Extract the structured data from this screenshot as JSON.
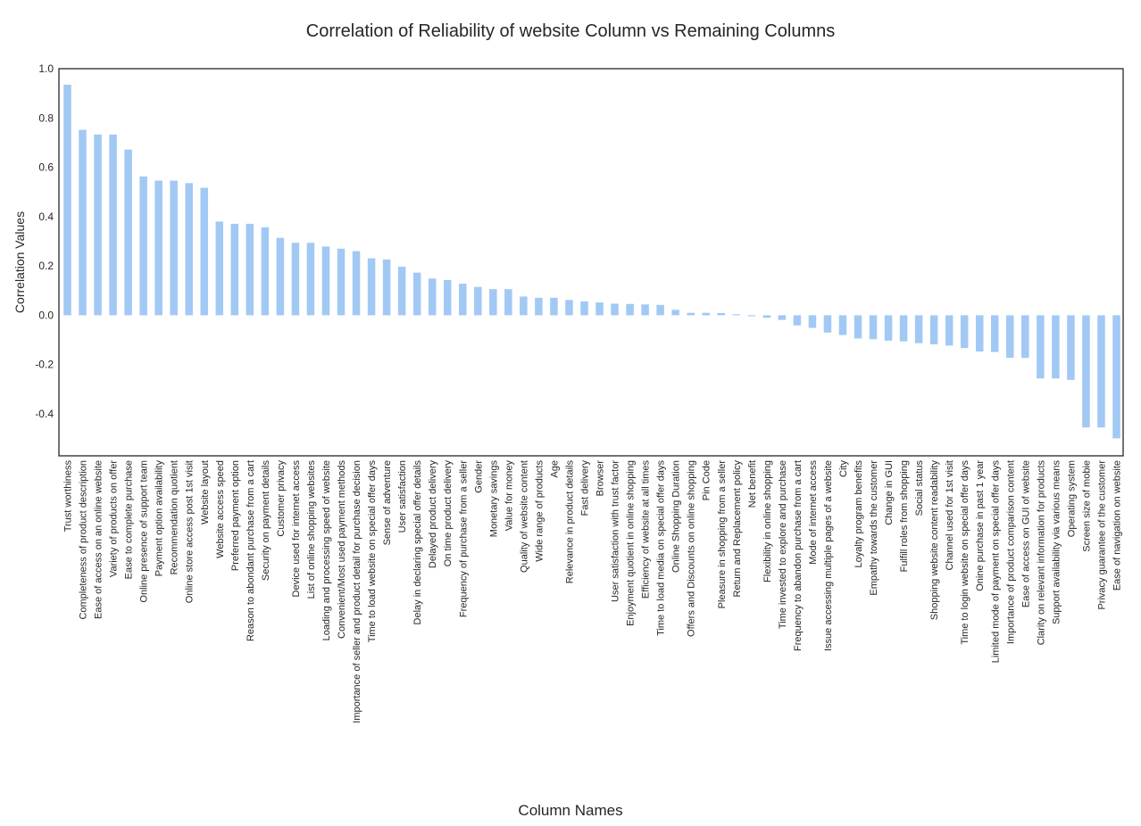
{
  "chart_data": {
    "type": "bar",
    "title": "Correlation of Reliability of website Column vs Remaining Columns",
    "xlabel": "Column Names",
    "ylabel": "Correlation Values",
    "ylim": [
      -0.57,
      1.0
    ],
    "yticks": [
      "1.0",
      "0.8",
      "0.6",
      "0.4",
      "0.2",
      "0.0",
      "-0.2",
      "-0.4"
    ],
    "ytick_values": [
      1.0,
      0.8,
      0.6,
      0.4,
      0.2,
      0.0,
      -0.2,
      -0.4
    ],
    "grid": false,
    "legend": "none",
    "bar_color": "#a1c9f4",
    "categories": [
      "Trust worthiness",
      "Completeness of product description",
      "Ease of access on an online website",
      "Variety of products on offer",
      "Ease to complete purchase",
      "Online presence of support team",
      "Payment option availability",
      "Recommendation quotient",
      "Online store access post 1st visit",
      "Website layout",
      "Website access speed",
      "Preferred payment option",
      "Reason to abondant purchase from a cart",
      "Security on payment details",
      "Customer privacy",
      "Device used for internet access",
      "List of online shopping websites",
      "Loading and processing speed of website",
      "Convenient/Most used payment methods",
      "Importance of seller and product detail for purchase decision",
      "Time to load website on special offer days",
      "Sense of adventure",
      "User satisfaction",
      "Delay in declaring special offer details",
      "Delayed product delivery",
      "On time product delivery",
      "Frequency of purchase from a seller",
      "Gender",
      "Monetary savings",
      "Value for money",
      "Quality of website content",
      "Wide range of products",
      "Age",
      "Relevance in product details",
      "Fast delivery",
      "Browser",
      "User satisfaction with trust factor",
      "Enjoyment quotient in online shopping",
      "Efficiency of website at all times",
      "Time to load media on special offer days",
      "Online Shopping Duration",
      "Offers and Discounts on online shopping",
      "Pin Code",
      "Pleasure in shopping from a seller",
      "Return and Replacement policy",
      "Net benefit",
      "Flexibility in online shopping",
      "Time invested to explore and purchase",
      "Frequency to abandon purchase from a cart",
      "Mode of internet access",
      "Issue accessing multiple pages of a website",
      "City",
      "Loyalty program benefits",
      "Empathy towards the customer",
      "Change in GUI",
      "Fulfill roles from shopping",
      "Social status",
      "Shopping website content readability",
      "Channel used for 1st visit",
      "Time to login website on special offer days",
      "Onine purchase in past 1 year",
      "Limited mode of payment on special offer days",
      "Importance of product comparison content",
      "Ease of access on GUI of website",
      "Clarity on relevant information for products",
      "Support availability via various means",
      "Operating system",
      "Screen size of mobie",
      "Privacy guarantee of the customer",
      "Ease of navigation on website"
    ],
    "values": [
      0.935,
      0.752,
      0.733,
      0.733,
      0.672,
      0.563,
      0.546,
      0.546,
      0.536,
      0.517,
      0.38,
      0.371,
      0.371,
      0.357,
      0.314,
      0.294,
      0.294,
      0.279,
      0.27,
      0.26,
      0.231,
      0.226,
      0.197,
      0.173,
      0.149,
      0.143,
      0.128,
      0.115,
      0.106,
      0.106,
      0.076,
      0.071,
      0.071,
      0.062,
      0.056,
      0.052,
      0.047,
      0.046,
      0.044,
      0.042,
      0.022,
      0.01,
      0.01,
      0.009,
      0.004,
      -0.004,
      -0.01,
      -0.019,
      -0.041,
      -0.051,
      -0.07,
      -0.08,
      -0.094,
      -0.097,
      -0.103,
      -0.106,
      -0.113,
      -0.118,
      -0.123,
      -0.133,
      -0.147,
      -0.149,
      -0.172,
      -0.173,
      -0.256,
      -0.256,
      -0.262,
      -0.455,
      -0.455,
      -0.499
    ]
  }
}
